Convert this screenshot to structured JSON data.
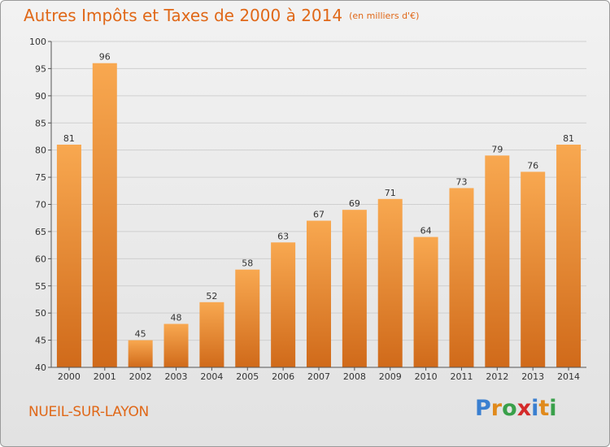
{
  "title": "Autres Impôts et Taxes de 2000 à 2014",
  "unit": "(en milliers d'€)",
  "place": "NUEIL-SUR-LAYON",
  "brand": "Proxiti",
  "colors": {
    "bar_light": "#f8a850",
    "bar_dark": "#d06a1a",
    "accent": "#e06818",
    "grid": "#cfcfcf"
  },
  "chart_data": {
    "type": "bar",
    "categories": [
      "2000",
      "2001",
      "2002",
      "2003",
      "2004",
      "2005",
      "2006",
      "2007",
      "2008",
      "2009",
      "2010",
      "2011",
      "2012",
      "2013",
      "2014"
    ],
    "values": [
      81,
      96,
      45,
      48,
      52,
      58,
      63,
      67,
      69,
      71,
      64,
      73,
      79,
      76,
      81
    ],
    "ylim": [
      40,
      100
    ],
    "yticks": [
      40,
      45,
      50,
      55,
      60,
      65,
      70,
      75,
      80,
      85,
      90,
      95,
      100
    ],
    "grid": true
  }
}
